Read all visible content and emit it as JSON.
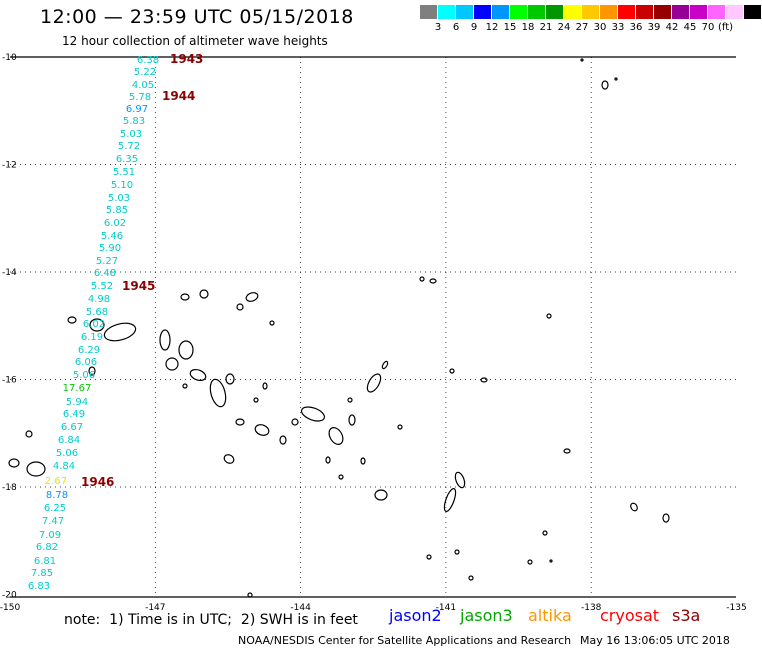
{
  "header": {
    "title": "12:00 — 23:59 UTC 05/15/2018",
    "subtitle": "12 hour collection of altimeter wave heights"
  },
  "legend": {
    "colors": [
      "#7f7f7f",
      "#00ffff",
      "#00c8ff",
      "#0000ff",
      "#0096ff",
      "#00ff00",
      "#00c800",
      "#009600",
      "#ffff00",
      "#ffc800",
      "#ff9600",
      "#ff0000",
      "#c80000",
      "#960000",
      "#960096",
      "#c800c8",
      "#ff64ff",
      "#ffc8ff",
      "#000000"
    ],
    "labels": [
      "3",
      "6",
      "9",
      "12",
      "15",
      "18",
      "21",
      "24",
      "27",
      "30",
      "33",
      "36",
      "39",
      "42",
      "45",
      "70"
    ],
    "unit": "(ft)"
  },
  "axes": {
    "lon_labels": [
      "-150",
      "-147",
      "-144",
      "-141",
      "-138",
      "-135"
    ],
    "lat_labels": [
      "-10",
      "-12",
      "-14",
      "-16",
      "-18",
      "-20"
    ]
  },
  "track": {
    "times": [
      "1943",
      "1944",
      "1945",
      "1946"
    ],
    "values": [
      "6.38",
      "5.22",
      "4.05",
      "5.78",
      "6.97",
      "5.83",
      "5.03",
      "5.72",
      "6.35",
      "5.51",
      "5.10",
      "5.03",
      "5.85",
      "6.02",
      "5.46",
      "5.90",
      "5.27",
      "6.48",
      "5.52",
      "4.98",
      "5.68",
      "6.02",
      "6.19",
      "6.29",
      "6.06",
      "5.06",
      "17.67",
      "5.94",
      "6.49",
      "6.67",
      "6.84",
      "5.06",
      "4.84",
      "2.67",
      "8.78",
      "6.25",
      "7.47",
      "7.09",
      "6.82",
      "6.81",
      "7.85",
      "6.83"
    ],
    "value_colors": [
      "#00cccc",
      "#00cccc",
      "#00cccc",
      "#00cccc",
      "#0096ff",
      "#00cccc",
      "#00cccc",
      "#00cccc",
      "#00cccc",
      "#00cccc",
      "#00cccc",
      "#00cccc",
      "#00cccc",
      "#00cccc",
      "#00cccc",
      "#00cccc",
      "#00cccc",
      "#00cccc",
      "#00cccc",
      "#00cccc",
      "#00cccc",
      "#00cccc",
      "#00cccc",
      "#00cccc",
      "#00cccc",
      "#00cccc",
      "#00c800",
      "#00cccc",
      "#00cccc",
      "#00cccc",
      "#00cccc",
      "#00cccc",
      "#00cccc",
      "#e6e600",
      "#0096ff",
      "#00cccc",
      "#00cccc",
      "#00cccc",
      "#00cccc",
      "#00cccc",
      "#00cccc",
      "#00cccc"
    ],
    "time_color": "#8b0000"
  },
  "footer": {
    "note": "note:  1) Time is in UTC;  2) SWH is in feet",
    "satellites": [
      {
        "name": "jason2",
        "color": "#0000ff"
      },
      {
        "name": "jason3",
        "color": "#00aa00"
      },
      {
        "name": "altika",
        "color": "#ff9600"
      },
      {
        "name": "cryosat",
        "color": "#ff0000"
      },
      {
        "name": "s3a",
        "color": "#8b0000"
      }
    ],
    "credit": "NOAA/NESDIS Center for Satellite Applications and Research",
    "timestamp": "May 16 13:06:05 UTC 2018"
  }
}
